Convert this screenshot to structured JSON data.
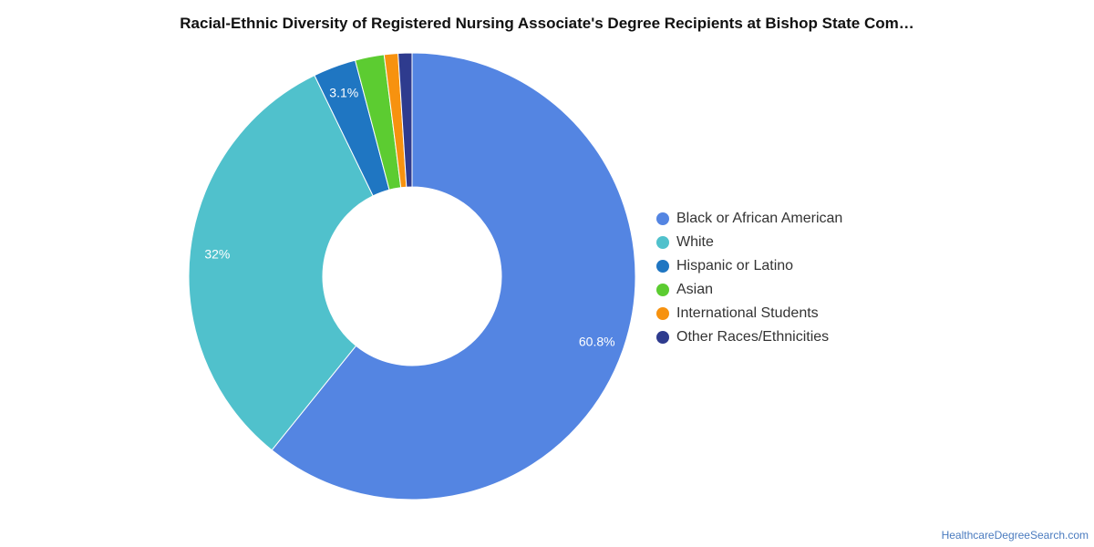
{
  "title": "Racial-Ethnic Diversity of Registered Nursing Associate's Degree Recipients at Bishop State Com…",
  "credit": "HealthcareDegreeSearch.com",
  "chart_data": {
    "type": "pie",
    "donut": true,
    "legend_position": "right",
    "start_angle_deg": 0,
    "direction": "clockwise",
    "slices": [
      {
        "name": "Black or African American",
        "value": 60.8,
        "color": "#5485e2",
        "label": "60.8%"
      },
      {
        "name": "White",
        "value": 32.0,
        "color": "#50c1cc",
        "label": "32%"
      },
      {
        "name": "Hispanic or Latino",
        "value": 3.1,
        "color": "#1f76c2",
        "label": "3.1%"
      },
      {
        "name": "Asian",
        "value": 2.1,
        "color": "#5ccc31",
        "label": ""
      },
      {
        "name": "International Students",
        "value": 1.0,
        "color": "#f7920f",
        "label": ""
      },
      {
        "name": "Other Races/Ethnicities",
        "value": 1.0,
        "color": "#2e3b8e",
        "label": ""
      }
    ]
  }
}
